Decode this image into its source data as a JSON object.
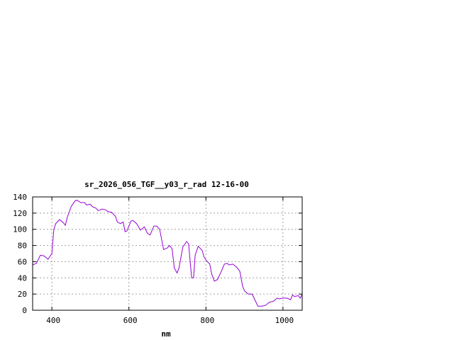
{
  "chart_data": {
    "type": "line",
    "title": "sr_2026_056_TGF__y03_r_rad 12-16-00",
    "xlabel": "nm",
    "ylabel": "",
    "xlim": [
      350,
      1050
    ],
    "ylim": [
      0,
      140
    ],
    "xticks": [
      400,
      600,
      800,
      1000
    ],
    "yticks": [
      0,
      20,
      40,
      60,
      80,
      100,
      120,
      140
    ],
    "grid": true,
    "series": [
      {
        "color": "#9400d3",
        "x": [
          350,
          360,
          370,
          380,
          390,
          400,
          405,
          410,
          420,
          430,
          435,
          440,
          450,
          460,
          465,
          475,
          485,
          490,
          500,
          505,
          515,
          520,
          530,
          540,
          545,
          555,
          565,
          570,
          578,
          585,
          590,
          595,
          605,
          610,
          620,
          630,
          640,
          648,
          655,
          665,
          672,
          680,
          690,
          700,
          705,
          712,
          718,
          725,
          730,
          740,
          750,
          755,
          760,
          763,
          768,
          772,
          780,
          790,
          795,
          800,
          810,
          815,
          822,
          830,
          840,
          848,
          855,
          860,
          870,
          880,
          888,
          895,
          900,
          910,
          920,
          930,
          935,
          945,
          955,
          965,
          975,
          985,
          990,
          1000,
          1010,
          1020,
          1025,
          1030,
          1040,
          1045,
          1050
        ],
        "y": [
          56,
          58,
          68,
          67,
          63,
          70,
          100,
          107,
          112,
          108,
          105,
          115,
          128,
          135,
          136,
          133,
          133,
          130,
          131,
          128,
          126,
          123,
          125,
          124,
          122,
          121,
          116,
          109,
          107,
          109,
          97,
          98,
          110,
          111,
          107,
          99,
          103,
          95,
          93,
          104,
          104,
          100,
          75,
          77,
          80,
          76,
          52,
          46,
          52,
          78,
          85,
          82,
          55,
          40,
          40,
          68,
          79,
          74,
          66,
          62,
          57,
          45,
          36,
          38,
          48,
          57,
          58,
          56,
          57,
          53,
          48,
          30,
          24,
          20,
          20,
          10,
          5,
          5,
          6,
          10,
          11,
          15,
          14,
          15,
          15,
          13,
          19,
          17,
          18,
          15,
          20
        ]
      }
    ]
  }
}
